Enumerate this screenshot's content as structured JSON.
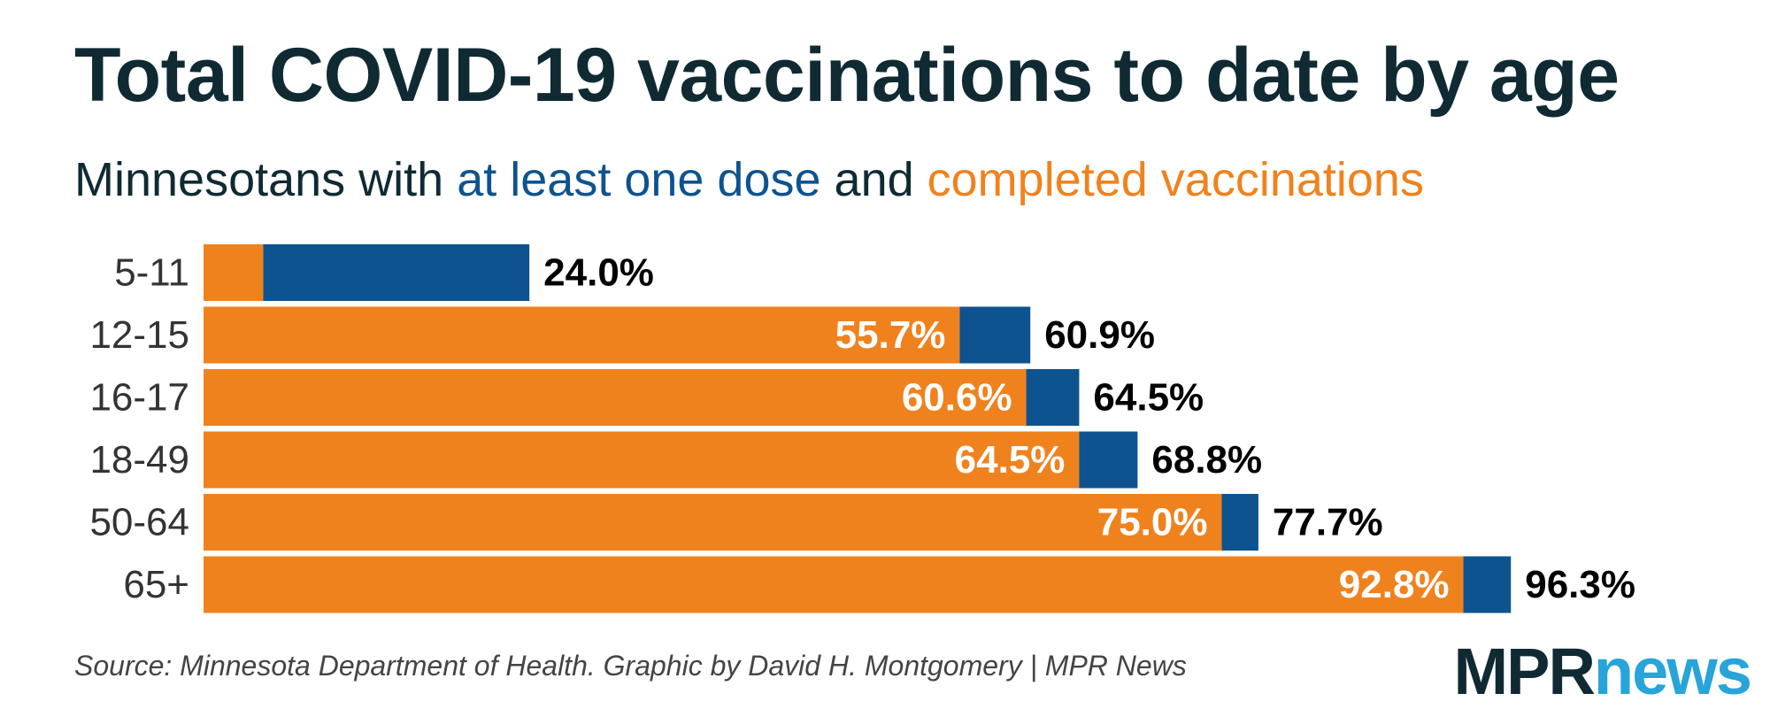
{
  "title": "Total COVID-19 vaccinations to date by age",
  "subtitle": {
    "prefix": "Minnesotans with ",
    "dose_label": "at least one dose",
    "middle": " and ",
    "complete_label": "completed vaccinations"
  },
  "colors": {
    "at_least_one_dose": "#0d5390",
    "completed": "#f0821e",
    "title": "#0f2a33",
    "logo_mpr": "#0f2a33",
    "logo_news": "#27a4d9"
  },
  "chart_data": {
    "type": "bar",
    "orientation": "horizontal",
    "categories": [
      "5-11",
      "12-15",
      "16-17",
      "18-49",
      "50-64",
      "65+"
    ],
    "series": [
      {
        "name": "at least one dose",
        "values": [
          24.0,
          60.9,
          64.5,
          68.8,
          77.7,
          96.3
        ],
        "labels": [
          "24.0%",
          "60.9%",
          "64.5%",
          "68.8%",
          "77.7%",
          "96.3%"
        ]
      },
      {
        "name": "completed vaccinations",
        "values": [
          4.4,
          55.7,
          60.6,
          64.5,
          75.0,
          92.8
        ],
        "labels": [
          "",
          "55.7%",
          "60.6%",
          "64.5%",
          "75.0%",
          "92.8%"
        ]
      }
    ],
    "xlim": [
      0,
      100
    ],
    "grid": false,
    "legend": "in subtitle"
  },
  "source": "Source: Minnesota Department of Health. Graphic by David H. Montgomery | MPR News",
  "logo": {
    "part1": "MPR",
    "part2": "news"
  }
}
